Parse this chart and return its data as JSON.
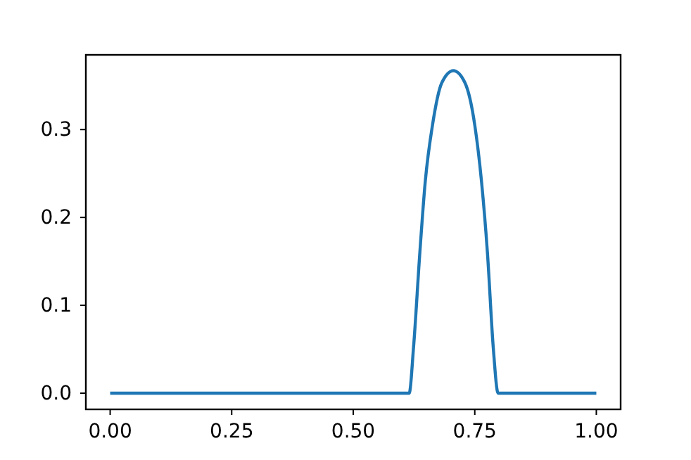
{
  "chart_data": {
    "type": "line",
    "x": [
      0,
      0.615,
      0.624,
      0.637,
      0.648,
      0.663,
      0.682,
      0.706,
      0.73,
      0.75,
      0.764,
      0.776,
      0.788,
      0.798,
      1
    ],
    "series": [
      {
        "color": "#1f77b4",
        "values": [
          0,
          0,
          0.052,
          0.16,
          0.24,
          0.305,
          0.353,
          0.367,
          0.353,
          0.305,
          0.24,
          0.16,
          0.052,
          0,
          0
        ]
      }
    ],
    "xlim": [
      -0.05,
      1.05
    ],
    "ylim": [
      -0.0184,
      0.385
    ],
    "xticks": [
      {
        "value": 0,
        "label": "0.00"
      },
      0.25,
      {
        "value": 0.5,
        "label": "0.50"
      },
      0.75,
      {
        "value": 1,
        "label": "1.00"
      }
    ],
    "yticks": [
      {
        "value": 0,
        "label": "0.0"
      },
      0.1,
      0.2,
      0.3
    ],
    "grid": false,
    "marker": "none",
    "line_style": "solid"
  }
}
